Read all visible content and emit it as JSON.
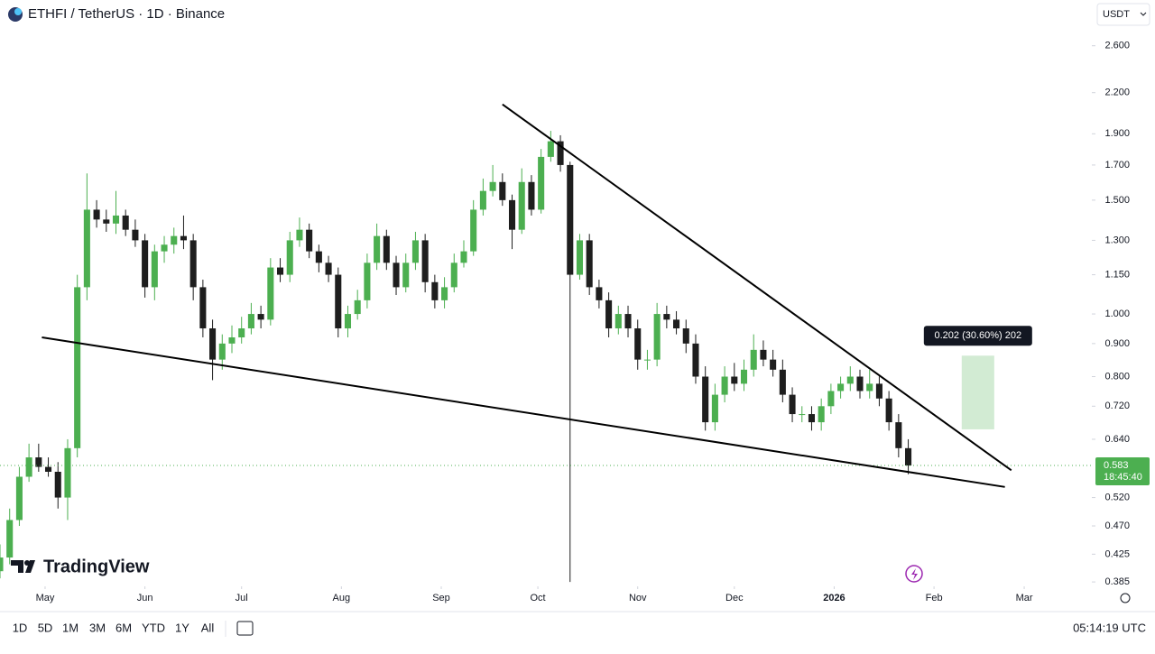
{
  "header": {
    "symbol": "ETHFI / TetherUS · 1D · Binance",
    "currency": "USDT"
  },
  "chart_data": {
    "type": "candlestick",
    "x": [
      0,
      3,
      6,
      9,
      12,
      15,
      18,
      21,
      24,
      27,
      30,
      33,
      36,
      39,
      42,
      45,
      48,
      51,
      54,
      57,
      60,
      63,
      66,
      69,
      72,
      75,
      78,
      81,
      84,
      87,
      90,
      93,
      96,
      99,
      102,
      105,
      108,
      111,
      114,
      117,
      120,
      123,
      126,
      129,
      132,
      135,
      138,
      141,
      144,
      147,
      150,
      153,
      156,
      159,
      162,
      165,
      168,
      171,
      174,
      177,
      180,
      183,
      186,
      189,
      192,
      195,
      198,
      201,
      204,
      207,
      210,
      213,
      216,
      219,
      222,
      225,
      228,
      231,
      234,
      237,
      240,
      243,
      246,
      249,
      252,
      255,
      258,
      261,
      264,
      267,
      270,
      273,
      276,
      279,
      282
    ],
    "open": [
      0.4,
      0.42,
      0.48,
      0.56,
      0.6,
      0.58,
      0.57,
      0.52,
      0.62,
      1.1,
      1.45,
      1.4,
      1.38,
      1.42,
      1.35,
      1.3,
      1.1,
      1.25,
      1.28,
      1.32,
      1.3,
      1.1,
      0.95,
      0.85,
      0.9,
      0.92,
      0.95,
      1.0,
      0.98,
      1.18,
      1.15,
      1.3,
      1.35,
      1.25,
      1.2,
      1.15,
      0.95,
      1.0,
      1.05,
      1.2,
      1.32,
      1.2,
      1.1,
      1.2,
      1.3,
      1.12,
      1.05,
      1.1,
      1.2,
      1.25,
      1.45,
      1.55,
      1.6,
      1.5,
      1.35,
      1.6,
      1.45,
      1.75,
      1.85,
      1.7,
      1.15,
      1.3,
      1.1,
      1.05,
      0.95,
      1.0,
      0.95,
      0.85,
      0.85,
      1.0,
      0.98,
      0.95,
      0.9,
      0.8,
      0.68,
      0.75,
      0.8,
      0.78,
      0.82,
      0.88,
      0.85,
      0.82,
      0.75,
      0.7,
      0.7,
      0.68,
      0.72,
      0.76,
      0.78,
      0.8,
      0.76,
      0.78,
      0.74,
      0.68,
      0.62
    ],
    "high": [
      0.44,
      0.5,
      0.58,
      0.63,
      0.63,
      0.6,
      0.59,
      0.64,
      1.15,
      1.65,
      1.5,
      1.45,
      1.55,
      1.45,
      1.4,
      1.33,
      1.28,
      1.32,
      1.36,
      1.42,
      1.33,
      1.13,
      0.98,
      0.93,
      0.96,
      0.99,
      1.04,
      1.03,
      1.22,
      1.22,
      1.34,
      1.41,
      1.38,
      1.28,
      1.23,
      1.18,
      1.03,
      1.09,
      1.24,
      1.38,
      1.35,
      1.23,
      1.24,
      1.34,
      1.33,
      1.15,
      1.14,
      1.24,
      1.3,
      1.5,
      1.62,
      1.7,
      1.65,
      1.53,
      1.68,
      1.64,
      1.8,
      1.92,
      1.89,
      1.72,
      1.33,
      1.33,
      1.13,
      1.08,
      1.03,
      1.03,
      0.98,
      0.88,
      1.04,
      1.03,
      1.01,
      0.98,
      0.93,
      0.83,
      0.78,
      0.83,
      0.84,
      0.85,
      0.93,
      0.91,
      0.88,
      0.85,
      0.77,
      0.72,
      0.72,
      0.74,
      0.78,
      0.8,
      0.83,
      0.82,
      0.82,
      0.8,
      0.76,
      0.7,
      0.64
    ],
    "low": [
      0.39,
      0.41,
      0.47,
      0.55,
      0.57,
      0.56,
      0.5,
      0.48,
      0.6,
      1.05,
      1.36,
      1.34,
      1.33,
      1.32,
      1.27,
      1.06,
      1.05,
      1.2,
      1.24,
      1.26,
      1.05,
      0.92,
      0.79,
      0.82,
      0.87,
      0.9,
      0.93,
      0.95,
      0.96,
      1.12,
      1.12,
      1.27,
      1.22,
      1.16,
      1.12,
      0.92,
      0.92,
      0.98,
      1.02,
      1.17,
      1.17,
      1.07,
      1.08,
      1.17,
      1.08,
      1.02,
      1.02,
      1.08,
      1.18,
      1.23,
      1.42,
      1.52,
      1.47,
      1.26,
      1.33,
      1.42,
      1.43,
      1.72,
      1.66,
      0.385,
      1.13,
      1.07,
      1.02,
      0.92,
      0.93,
      0.92,
      0.82,
      0.82,
      0.83,
      0.95,
      0.93,
      0.87,
      0.78,
      0.66,
      0.66,
      0.73,
      0.76,
      0.76,
      0.8,
      0.83,
      0.8,
      0.73,
      0.68,
      0.68,
      0.66,
      0.66,
      0.7,
      0.74,
      0.76,
      0.74,
      0.74,
      0.72,
      0.66,
      0.6,
      0.565
    ],
    "close": [
      0.42,
      0.48,
      0.56,
      0.6,
      0.58,
      0.57,
      0.52,
      0.62,
      1.1,
      1.45,
      1.4,
      1.38,
      1.42,
      1.35,
      1.3,
      1.1,
      1.25,
      1.28,
      1.32,
      1.3,
      1.1,
      0.95,
      0.85,
      0.9,
      0.92,
      0.95,
      1.0,
      0.98,
      1.18,
      1.15,
      1.3,
      1.35,
      1.25,
      1.2,
      1.15,
      0.95,
      1.0,
      1.05,
      1.2,
      1.32,
      1.2,
      1.1,
      1.2,
      1.3,
      1.12,
      1.05,
      1.1,
      1.2,
      1.25,
      1.45,
      1.55,
      1.6,
      1.5,
      1.35,
      1.6,
      1.45,
      1.75,
      1.85,
      1.7,
      1.15,
      1.3,
      1.1,
      1.05,
      0.95,
      1.0,
      0.95,
      0.85,
      0.85,
      1.0,
      0.98,
      0.95,
      0.9,
      0.8,
      0.68,
      0.75,
      0.8,
      0.78,
      0.82,
      0.88,
      0.85,
      0.82,
      0.75,
      0.7,
      0.7,
      0.68,
      0.72,
      0.76,
      0.78,
      0.8,
      0.76,
      0.78,
      0.74,
      0.68,
      0.62,
      0.583
    ],
    "xlim": [
      0,
      339
    ],
    "xticks": [
      {
        "value": 14,
        "label": "May"
      },
      {
        "value": 45,
        "label": "Jun"
      },
      {
        "value": 75,
        "label": "Jul"
      },
      {
        "value": 106,
        "label": "Aug"
      },
      {
        "value": 137,
        "label": "Sep"
      },
      {
        "value": 167,
        "label": "Oct"
      },
      {
        "value": 198,
        "label": "Nov"
      },
      {
        "value": 228,
        "label": "Dec"
      },
      {
        "value": 259,
        "label": "2026"
      },
      {
        "value": 290,
        "label": "Feb"
      },
      {
        "value": 318,
        "label": "Mar"
      }
    ],
    "ylim": [
      0.379,
      3.06
    ],
    "log_scale": true,
    "grid": false,
    "yticks": [
      {
        "value": 2.6,
        "label": "2.600"
      },
      {
        "value": 2.2,
        "label": "2.200"
      },
      {
        "value": 1.9,
        "label": "1.900"
      },
      {
        "value": 1.7,
        "label": "1.700"
      },
      {
        "value": 1.5,
        "label": "1.500"
      },
      {
        "value": 1.3,
        "label": "1.300"
      },
      {
        "value": 1.15,
        "label": "1.150"
      },
      {
        "value": 1,
        "label": "1.000"
      },
      {
        "value": 0.9,
        "label": "0.900"
      },
      {
        "value": 0.8,
        "label": "0.800"
      },
      {
        "value": 0.72,
        "label": "0.720"
      },
      {
        "value": 0.64,
        "label": "0.640"
      },
      {
        "value": 0.52,
        "label": "0.520"
      },
      {
        "value": 0.47,
        "label": "0.470"
      },
      0.425,
      0.385
    ],
    "up_color": "#4caf50",
    "down_color": "#1e1e1e",
    "trendlines": [
      {
        "x": [
          156,
          314
        ],
        "y": [
          2.11,
          0.573
        ]
      },
      {
        "x": [
          13,
          312
        ],
        "y": [
          0.92,
          0.54
        ]
      }
    ],
    "measure": {
      "x": [
        298.6,
        308.7
      ],
      "y": [
        0.663,
        0.862
      ],
      "label": "0.202 (30.60%) 202"
    },
    "last_price": 0.583,
    "countdown": "18:45:40"
  },
  "brand": "TradingView",
  "toolbar": {
    "ranges": [
      "1D",
      "5D",
      "1M",
      "3M",
      "6M",
      "YTD",
      "1Y",
      "All"
    ],
    "time": "05:14:19 UTC"
  }
}
